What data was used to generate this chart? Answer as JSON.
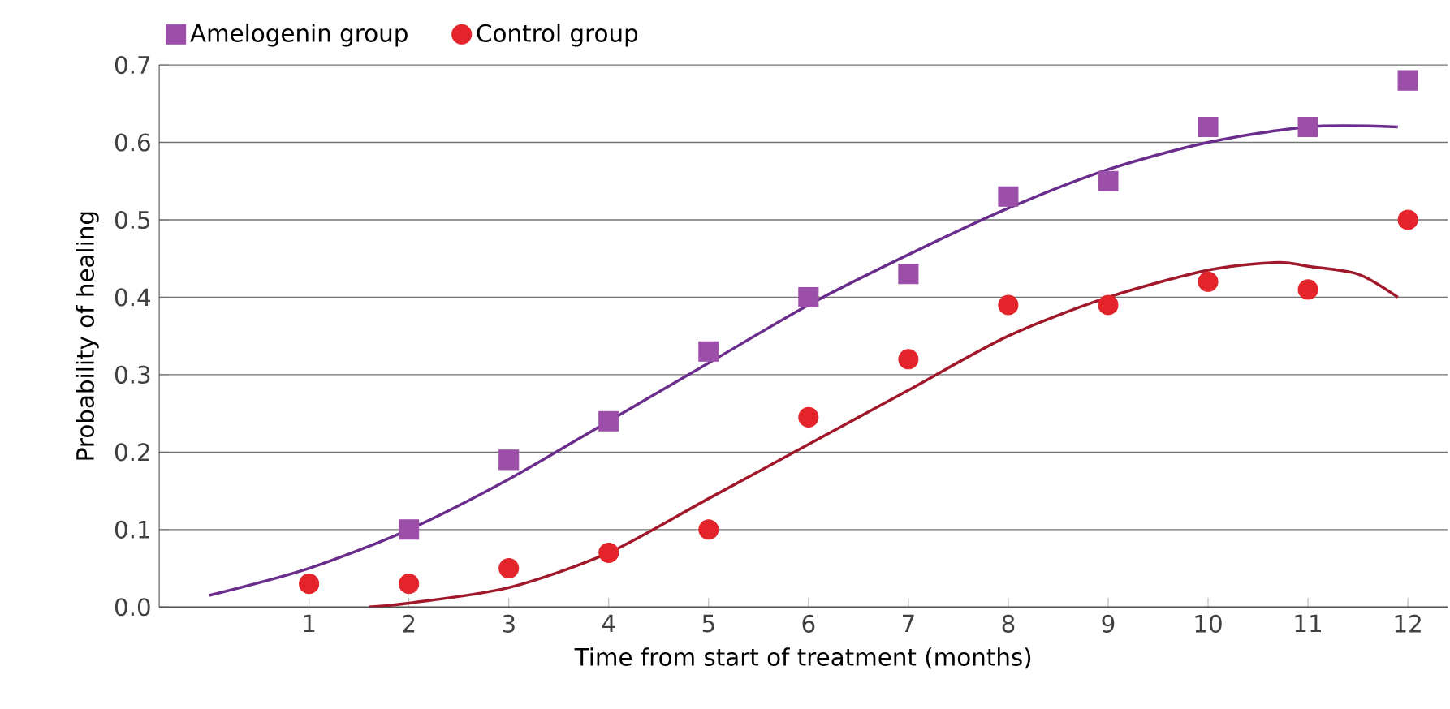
{
  "chart_data": {
    "type": "scatter",
    "xlabel": "Time from start of treatment (months)",
    "ylabel": "Probability of healing",
    "xlim": [
      -0.5,
      12.4
    ],
    "ylim": [
      0,
      0.7
    ],
    "xticks": [
      1,
      2,
      3,
      4,
      5,
      6,
      7,
      8,
      9,
      10,
      11,
      12
    ],
    "yticks": [
      {
        "value": 0,
        "label": "0.0"
      },
      0.1,
      0.2,
      0.3,
      0.4,
      0.5,
      0.6,
      0.7
    ],
    "grid": "y",
    "legend": "top left",
    "series": [
      {
        "name": "Amelogenin group",
        "color": "#9b4fa8",
        "marker": "square",
        "x": [
          2,
          3,
          4,
          5,
          6,
          7,
          8,
          9,
          10,
          11,
          12
        ],
        "values": [
          0.1,
          0.19,
          0.24,
          0.33,
          0.4,
          0.43,
          0.53,
          0.55,
          0.62,
          0.62,
          0.68
        ]
      },
      {
        "name": "Control group",
        "color": "#e3242b",
        "marker": "circle",
        "x": [
          1,
          2,
          3,
          4,
          5,
          6,
          7,
          8,
          9,
          10,
          11,
          12
        ],
        "values": [
          0.03,
          0.03,
          0.05,
          0.07,
          0.1,
          0.245,
          0.32,
          0.39,
          0.39,
          0.42,
          0.41,
          0.5
        ]
      },
      {
        "type": "line",
        "color": "#6a2d8c",
        "x": [
          0,
          1,
          2,
          3,
          4,
          5,
          6,
          7,
          8,
          9,
          10,
          11,
          11.9
        ],
        "values": [
          0.015,
          0.05,
          0.1,
          0.165,
          0.24,
          0.315,
          0.39,
          0.455,
          0.515,
          0.565,
          0.6,
          0.62,
          0.62
        ]
      },
      {
        "type": "line",
        "color": "#a0182a",
        "x": [
          1.6,
          2,
          3,
          4,
          5,
          6,
          7,
          8,
          9,
          10,
          10.7,
          11,
          11.5,
          11.9
        ],
        "values": [
          0,
          0.005,
          0.025,
          0.07,
          0.14,
          0.21,
          0.28,
          0.35,
          0.4,
          0.435,
          0.445,
          0.44,
          0.43,
          0.4
        ]
      }
    ]
  }
}
